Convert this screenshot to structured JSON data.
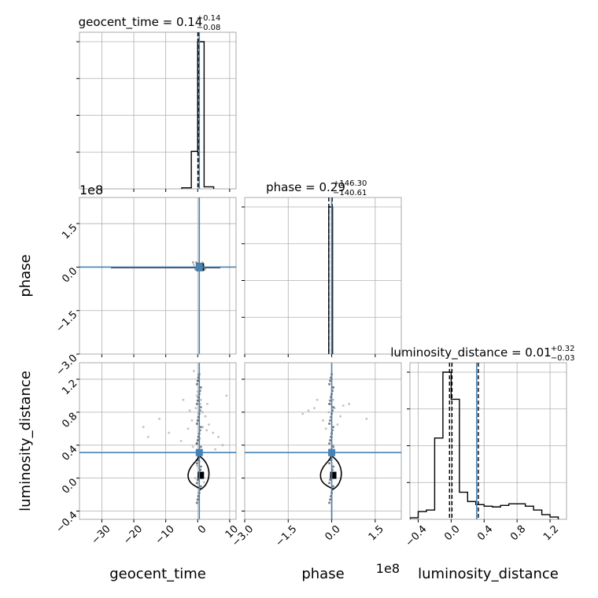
{
  "chart_data": {
    "type": "corner",
    "parameters": [
      "geocent_time",
      "phase",
      "luminosity_distance"
    ],
    "truth_color": "#4682b4",
    "grid": true,
    "titles": [
      {
        "base": "geocent_time = 0.14",
        "sup": "+0.14",
        "sub": "−0.08"
      },
      {
        "base": "phase = 0.29",
        "sup": "+146.30",
        "sub": "−140.61"
      },
      {
        "base": "luminosity_distance = 0.01",
        "sup": "+0.32",
        "sub": "−0.03"
      }
    ],
    "offset_labels": [
      "1e8",
      "1e8"
    ],
    "axes": {
      "geocent_time": {
        "lim": [
          -37,
          12
        ],
        "ticks": [
          -30,
          -20,
          -10,
          0,
          10
        ],
        "tick_labels": [
          "−30",
          "−20",
          "−10",
          "0",
          "10"
        ],
        "truth": 0.5,
        "quantiles": [
          0.06,
          0.14,
          0.28
        ]
      },
      "phase": {
        "lim": [
          -3.0,
          2.4
        ],
        "ticks": [
          -3.0,
          -1.5,
          0.0,
          1.5
        ],
        "tick_labels": [
          "−3.0",
          "−1.5",
          "0.0",
          "1.5"
        ],
        "truth": 0.0,
        "quantiles": [
          -0.1,
          0.0,
          0.02
        ],
        "scale_note": "1e8"
      },
      "luminosity_distance": {
        "lim": [
          -0.5,
          1.4
        ],
        "ticks": [
          -0.4,
          0.0,
          0.4,
          0.8,
          1.2
        ],
        "tick_labels": [
          "−0.4",
          "0.0",
          "0.4",
          "0.8",
          "1.2"
        ],
        "truth": 0.31,
        "quantiles": [
          -0.02,
          0.01,
          0.33
        ]
      }
    },
    "marginals": {
      "geocent_time": {
        "bin_edges": [
          -5,
          -2,
          0,
          2,
          5
        ],
        "counts": [
          1,
          37,
          145,
          2
        ]
      },
      "phase": {
        "bin_edges": [
          -0.1,
          0.03
        ],
        "counts": [
          30
        ]
      },
      "luminosity_distance": {
        "bin_edges": [
          -0.5,
          -0.4,
          -0.3,
          -0.2,
          -0.1,
          0.0,
          0.1,
          0.2,
          0.3,
          0.4,
          0.5,
          0.6,
          0.7,
          0.8,
          0.9,
          1.0,
          1.1,
          1.2,
          1.3
        ],
        "counts": [
          0.2,
          1.0,
          1.2,
          10.5,
          19.0,
          15.5,
          3.5,
          2.3,
          1.9,
          1.7,
          1.6,
          1.8,
          2.0,
          2.0,
          1.7,
          1.2,
          0.6,
          0.3
        ]
      }
    },
    "scatter_sets": {
      "geocent_time_vs_luminosity_distance": {
        "x": [
          0.2,
          0.5,
          -0.3,
          1.0,
          0.8,
          -0.6,
          1.5,
          2.4,
          -1.8,
          3.5,
          -3.0,
          4.8,
          6.5,
          -5.2,
          7.8,
          -9.0,
          -17.0,
          -15.5,
          -12.0,
          9.0,
          -4.5,
          5.5,
          0.1,
          0.3,
          0.6,
          -0.2,
          0.9,
          1.2,
          -0.8,
          2.0,
          -1.2,
          0.4,
          0.0,
          0.7,
          -0.4,
          1.6,
          -2.5,
          3.0,
          2.8,
          -1.5
        ],
        "y": [
          1.25,
          1.1,
          1.0,
          0.95,
          0.9,
          0.85,
          0.8,
          0.75,
          0.7,
          0.65,
          0.6,
          0.55,
          0.5,
          0.45,
          0.4,
          0.55,
          0.62,
          0.5,
          0.72,
          1.0,
          0.95,
          0.35,
          0.3,
          0.25,
          0.2,
          0.15,
          0.1,
          0.05,
          0.0,
          -0.05,
          1.3,
          1.18,
          1.05,
          0.48,
          0.42,
          0.62,
          0.82,
          0.9,
          0.58,
          0.38
        ]
      },
      "phase_vs_luminosity_distance": {
        "x": [
          0.0,
          0.02,
          -0.02,
          0.05,
          -0.05,
          0.1,
          -0.1,
          0.3,
          -0.3,
          -1.0,
          -0.6,
          1.2,
          0.2,
          -0.2,
          0.0,
          0.01,
          -0.01,
          0.04,
          -0.04,
          0.08,
          -0.5,
          0.6,
          -0.8,
          0.4
        ],
        "y": [
          1.2,
          1.1,
          1.0,
          0.95,
          0.9,
          0.85,
          0.8,
          0.75,
          0.7,
          0.78,
          0.85,
          0.72,
          0.65,
          0.6,
          0.55,
          0.5,
          0.45,
          0.4,
          0.35,
          0.3,
          0.95,
          0.9,
          0.82,
          0.88
        ]
      }
    }
  }
}
